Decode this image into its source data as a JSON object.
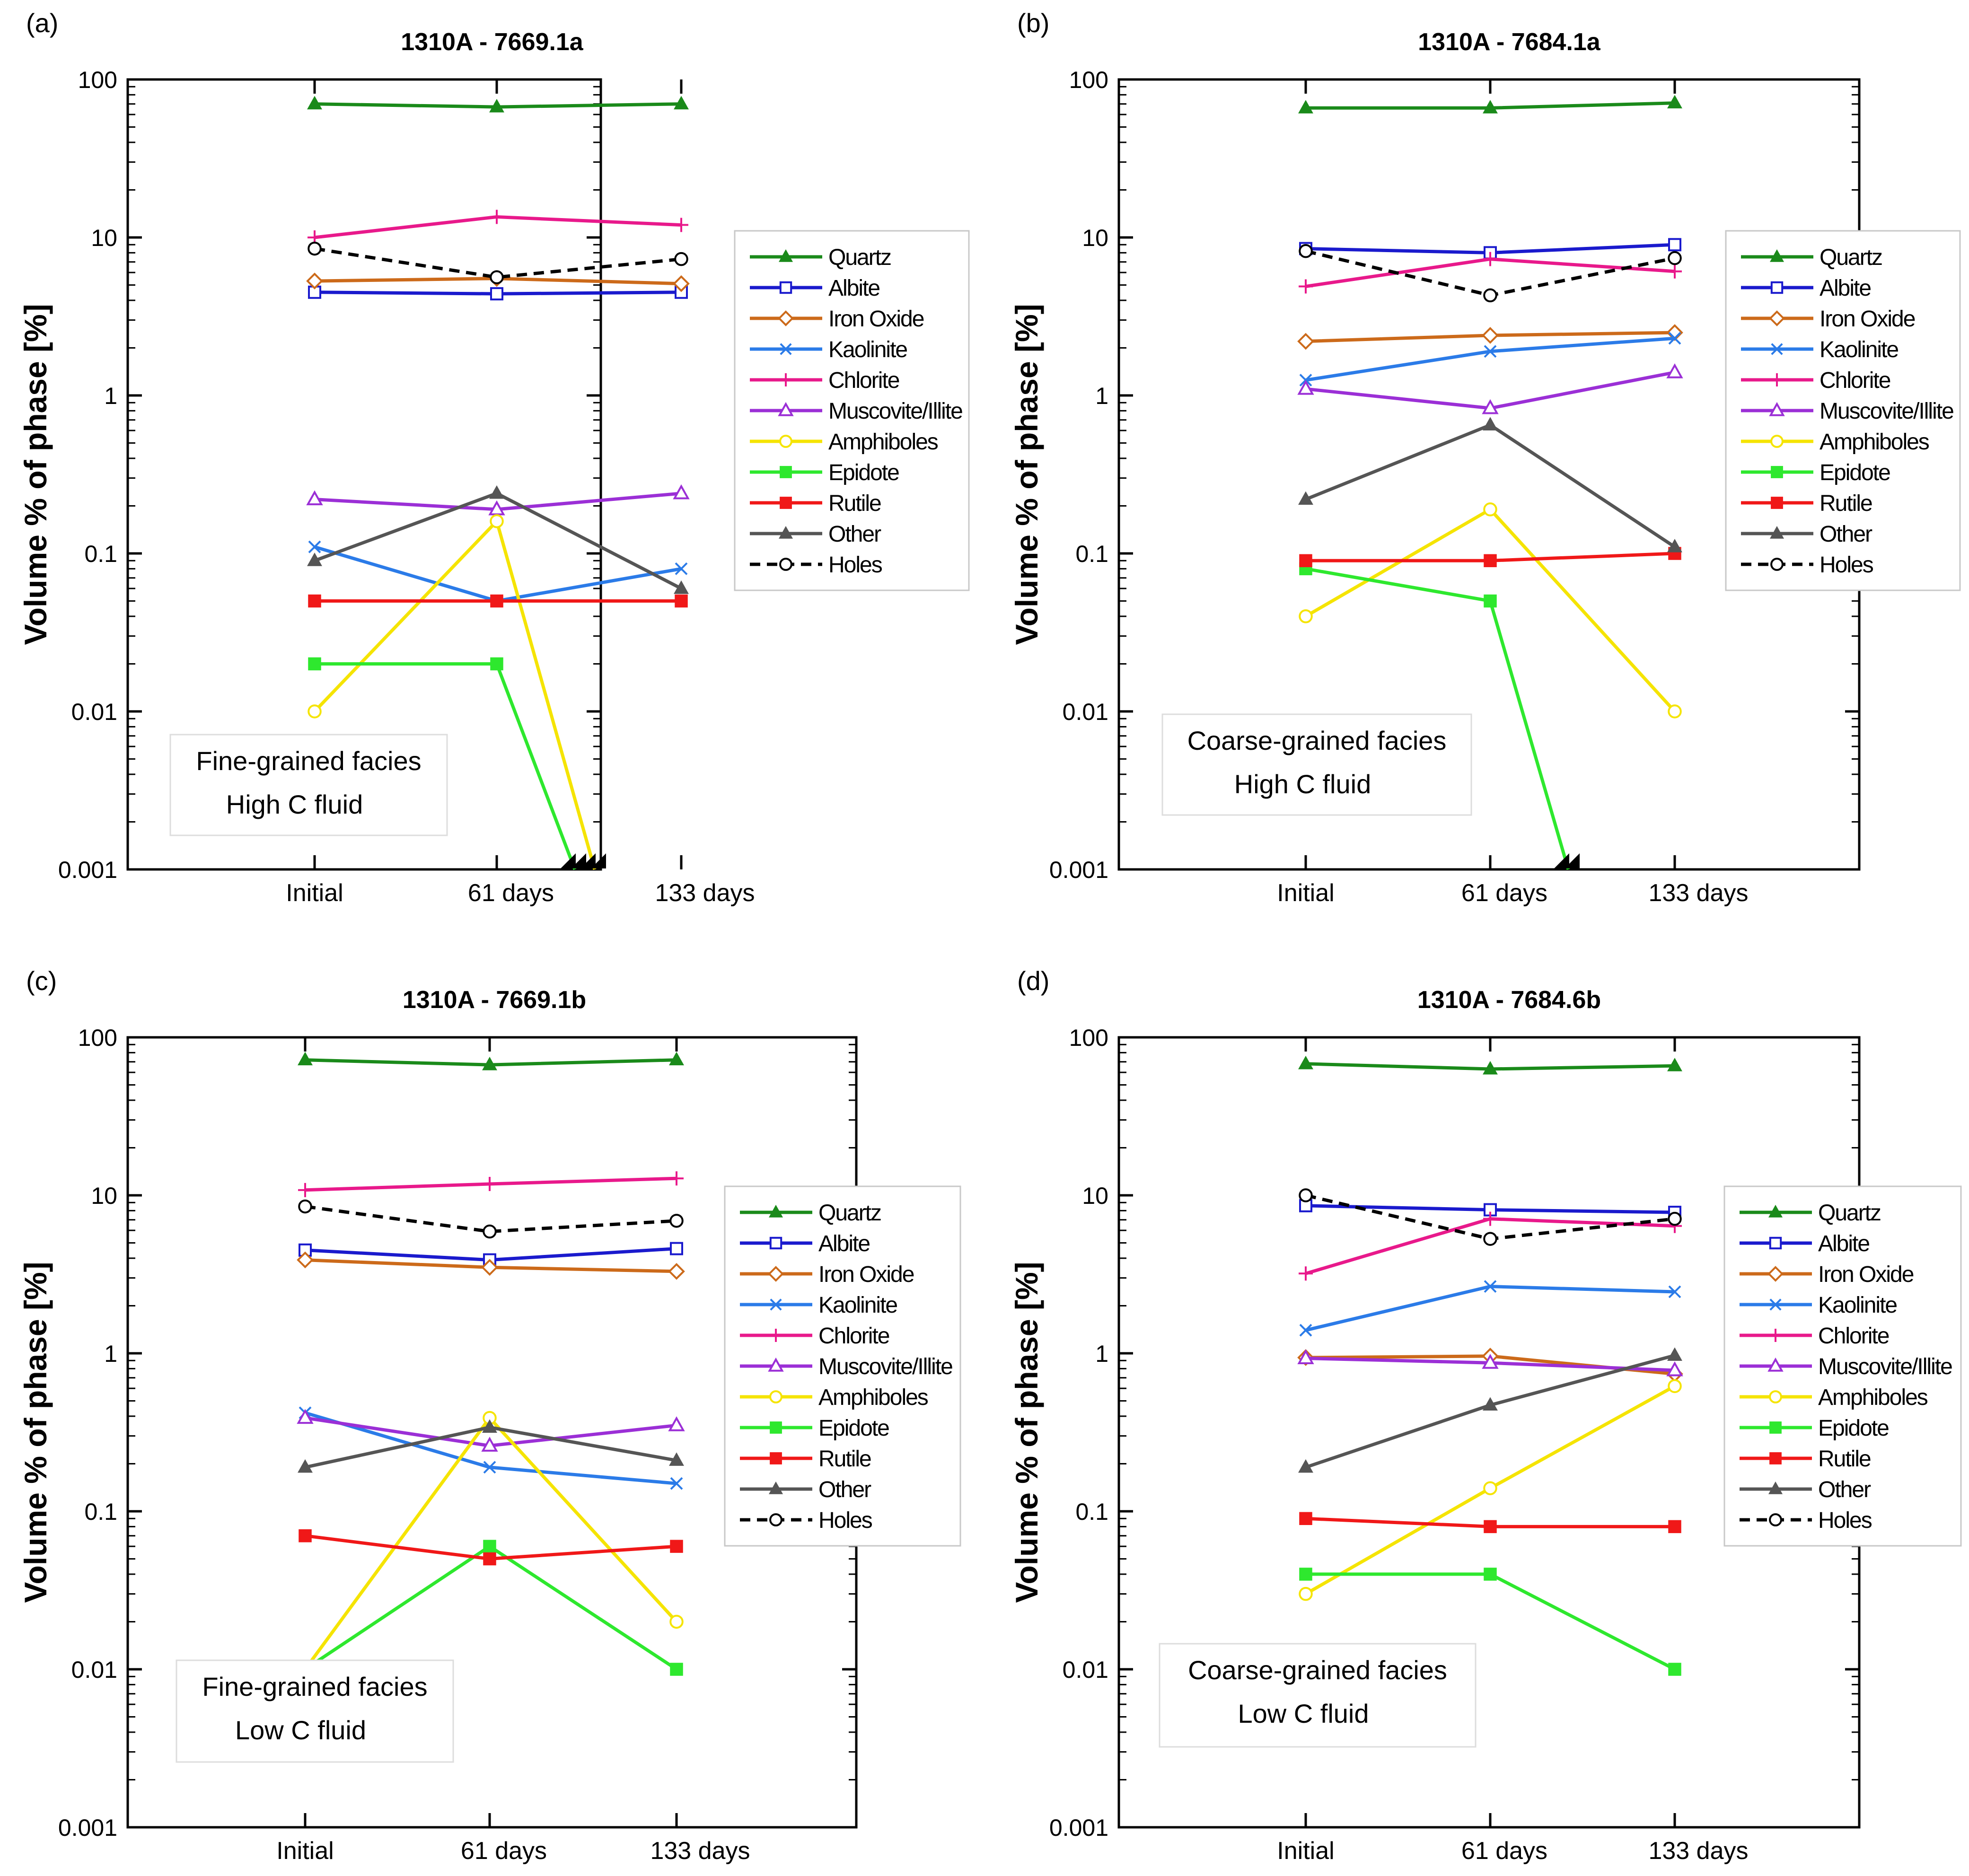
{
  "figure": {
    "legend_entries": [
      {
        "name": "Quartz",
        "color": "#1a8a1a",
        "marker": "filled-triangle",
        "dash": false
      },
      {
        "name": "Albite",
        "color": "#1a1acd",
        "marker": "open-square",
        "dash": false
      },
      {
        "name": "Iron Oxide",
        "color": "#cc6a1a",
        "marker": "open-diamond",
        "dash": false
      },
      {
        "name": "Kaolinite",
        "color": "#2b7be8",
        "marker": "x",
        "dash": false
      },
      {
        "name": "Chlorite",
        "color": "#e8198b",
        "marker": "plus",
        "dash": false
      },
      {
        "name": "Muscovite/Illite",
        "color": "#9b2fd6",
        "marker": "open-triangle",
        "dash": false
      },
      {
        "name": "Amphiboles",
        "color": "#f5e400",
        "marker": "open-circle",
        "dash": false
      },
      {
        "name": "Epidote",
        "color": "#2ee82e",
        "marker": "filled-square",
        "dash": false
      },
      {
        "name": "Rutile",
        "color": "#f01818",
        "marker": "filled-square",
        "dash": false
      },
      {
        "name": "Other",
        "color": "#555555",
        "marker": "filled-triangle",
        "dash": false
      },
      {
        "name": "Holes",
        "color": "#000000",
        "marker": "open-circle",
        "dash": true
      }
    ]
  },
  "chart_data": [
    {
      "type": "line",
      "panel_label": "(a)",
      "title": "1310A - 7669.1a",
      "ylabel": "Volume % of phase [%]",
      "yscale": "log",
      "ylim": [
        0.001,
        100
      ],
      "ytick_labels": [
        "100",
        "10",
        "1",
        "0.1",
        "0.01",
        "0.001"
      ],
      "categories": [
        "Initial",
        "61 days",
        "133 days"
      ],
      "annotation": [
        "Fine-grained facies",
        "High C fluid"
      ],
      "off_scale_arrows": [
        "Epidote",
        "Amphiboles"
      ],
      "series": [
        {
          "name": "Quartz",
          "values": [
            70,
            67,
            70
          ]
        },
        {
          "name": "Albite",
          "values": [
            4.5,
            4.4,
            4.5
          ]
        },
        {
          "name": "Iron Oxide",
          "values": [
            5.3,
            5.5,
            5.1
          ]
        },
        {
          "name": "Kaolinite",
          "values": [
            0.11,
            0.05,
            0.08
          ]
        },
        {
          "name": "Chlorite",
          "values": [
            10,
            13.5,
            12
          ]
        },
        {
          "name": "Muscovite/Illite",
          "values": [
            0.22,
            0.19,
            0.24
          ]
        },
        {
          "name": "Amphiboles",
          "values": [
            0.01,
            0.16,
            0.001
          ]
        },
        {
          "name": "Epidote",
          "values": [
            0.02,
            0.02,
            0.001
          ]
        },
        {
          "name": "Rutile",
          "values": [
            0.05,
            0.05,
            0.05
          ]
        },
        {
          "name": "Other",
          "values": [
            0.09,
            0.24,
            0.06
          ]
        },
        {
          "name": "Holes",
          "values": [
            8.5,
            5.6,
            7.3
          ]
        }
      ]
    },
    {
      "type": "line",
      "panel_label": "(b)",
      "title": "1310A - 7684.1a",
      "ylabel": "Volume % of phase [%]",
      "yscale": "log",
      "ylim": [
        0.001,
        100
      ],
      "ytick_labels": [
        "100",
        "10",
        "1",
        "0.1",
        "0.01",
        "0.001"
      ],
      "categories": [
        "Initial",
        "61 days",
        "133 days"
      ],
      "annotation": [
        "Coarse-grained facies",
        "High C fluid"
      ],
      "off_scale_arrows": [
        "Epidote"
      ],
      "series": [
        {
          "name": "Quartz",
          "values": [
            66,
            66,
            71
          ]
        },
        {
          "name": "Albite",
          "values": [
            8.5,
            8.0,
            9.0
          ]
        },
        {
          "name": "Iron Oxide",
          "values": [
            2.2,
            2.4,
            2.5
          ]
        },
        {
          "name": "Kaolinite",
          "values": [
            1.25,
            1.9,
            2.3
          ]
        },
        {
          "name": "Chlorite",
          "values": [
            4.9,
            7.3,
            6.1
          ]
        },
        {
          "name": "Muscovite/Illite",
          "values": [
            1.1,
            0.83,
            1.4
          ]
        },
        {
          "name": "Amphiboles",
          "values": [
            0.04,
            0.19,
            0.01
          ]
        },
        {
          "name": "Epidote",
          "values": [
            0.08,
            0.05,
            0.001
          ]
        },
        {
          "name": "Rutile",
          "values": [
            0.09,
            0.09,
            0.1
          ]
        },
        {
          "name": "Other",
          "values": [
            0.22,
            0.65,
            0.11
          ]
        },
        {
          "name": "Holes",
          "values": [
            8.2,
            4.3,
            7.4
          ]
        }
      ]
    },
    {
      "type": "line",
      "panel_label": "(c)",
      "title": "1310A - 7669.1b",
      "ylabel": "Volume % of phase [%]",
      "yscale": "log",
      "ylim": [
        0.001,
        100
      ],
      "ytick_labels": [
        "100",
        "10",
        "1",
        "0.1",
        "0.01",
        "0.001"
      ],
      "categories": [
        "Initial",
        "61 days",
        "133 days"
      ],
      "annotation": [
        "Fine-grained facies",
        "Low C fluid"
      ],
      "off_scale_arrows": [],
      "series": [
        {
          "name": "Quartz",
          "values": [
            72,
            67,
            72
          ]
        },
        {
          "name": "Albite",
          "values": [
            4.5,
            3.9,
            4.6
          ]
        },
        {
          "name": "Iron Oxide",
          "values": [
            3.9,
            3.5,
            3.3
          ]
        },
        {
          "name": "Kaolinite",
          "values": [
            0.42,
            0.19,
            0.15
          ]
        },
        {
          "name": "Chlorite",
          "values": [
            10.8,
            11.8,
            12.8
          ]
        },
        {
          "name": "Muscovite/Illite",
          "values": [
            0.39,
            0.26,
            0.35
          ]
        },
        {
          "name": "Amphiboles",
          "values": [
            0.01,
            0.39,
            0.02
          ]
        },
        {
          "name": "Epidote",
          "values": [
            0.01,
            0.06,
            0.01
          ]
        },
        {
          "name": "Rutile",
          "values": [
            0.07,
            0.05,
            0.06
          ]
        },
        {
          "name": "Other",
          "values": [
            0.19,
            0.34,
            0.21
          ]
        },
        {
          "name": "Holes",
          "values": [
            8.5,
            5.9,
            6.9
          ]
        }
      ]
    },
    {
      "type": "line",
      "panel_label": "(d)",
      "title": "1310A - 7684.6b",
      "ylabel": "Volume % of phase [%]",
      "yscale": "log",
      "ylim": [
        0.001,
        100
      ],
      "ytick_labels": [
        "100",
        "10",
        "1",
        "0.1",
        "0.01",
        "0.001"
      ],
      "categories": [
        "Initial",
        "61 days",
        "133 days"
      ],
      "annotation": [
        "Coarse-grained facies",
        "Low C fluid"
      ],
      "off_scale_arrows": [],
      "series": [
        {
          "name": "Quartz",
          "values": [
            68,
            63,
            66
          ]
        },
        {
          "name": "Albite",
          "values": [
            8.6,
            8.1,
            7.8
          ]
        },
        {
          "name": "Iron Oxide",
          "values": [
            0.94,
            0.96,
            0.74
          ]
        },
        {
          "name": "Kaolinite",
          "values": [
            1.4,
            2.65,
            2.45
          ]
        },
        {
          "name": "Chlorite",
          "values": [
            3.2,
            7.1,
            6.4
          ]
        },
        {
          "name": "Muscovite/Illite",
          "values": [
            0.93,
            0.87,
            0.78
          ]
        },
        {
          "name": "Amphiboles",
          "values": [
            0.03,
            0.14,
            0.62
          ]
        },
        {
          "name": "Epidote",
          "values": [
            0.04,
            0.04,
            0.01
          ]
        },
        {
          "name": "Rutile",
          "values": [
            0.09,
            0.08,
            0.08
          ]
        },
        {
          "name": "Other",
          "values": [
            0.19,
            0.47,
            0.97
          ]
        },
        {
          "name": "Holes",
          "values": [
            10,
            5.3,
            7.1
          ]
        }
      ]
    }
  ]
}
